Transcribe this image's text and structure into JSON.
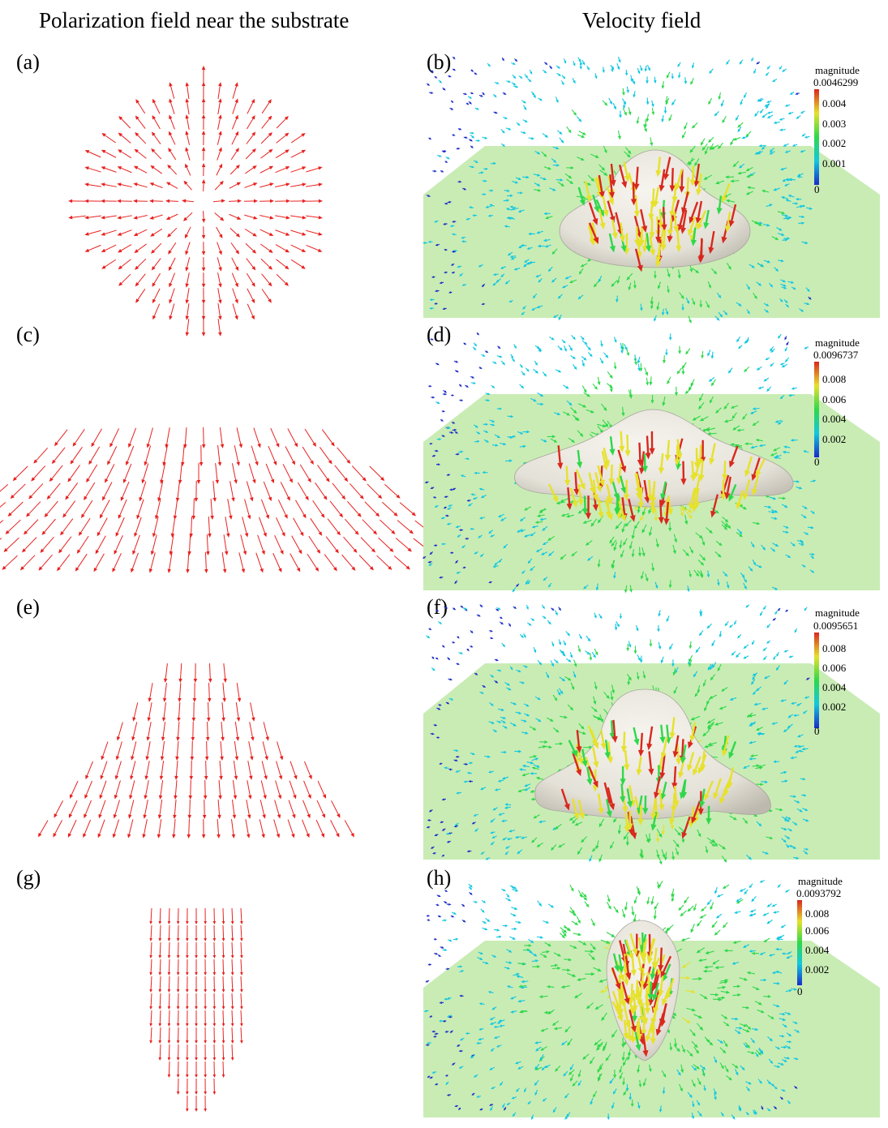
{
  "columns": {
    "left_title": "Polarization field near the substrate",
    "right_title": "Velocity field"
  },
  "panels": [
    {
      "label": "(a)"
    },
    {
      "label": "(b)"
    },
    {
      "label": "(c)"
    },
    {
      "label": "(d)"
    },
    {
      "label": "(e)"
    },
    {
      "label": "(f)"
    },
    {
      "label": "(g)"
    },
    {
      "label": "(h)"
    }
  ],
  "colorbars": [
    {
      "title": "magnitude",
      "max": "0.0046299",
      "ticks": [
        "0.004",
        "0.003",
        "0.002",
        "0.001",
        "0"
      ]
    },
    {
      "title": "magnitude",
      "max": "0.0096737",
      "ticks": [
        "0.008",
        "0.006",
        "0.004",
        "0.002",
        "0"
      ]
    },
    {
      "title": "magnitude",
      "max": "0.0095651",
      "ticks": [
        "0.008",
        "0.006",
        "0.004",
        "0.002",
        "0"
      ]
    },
    {
      "title": "magnitude",
      "max": "0.0093792",
      "ticks": [
        "0.008",
        "0.006",
        "0.004",
        "0.002",
        "0"
      ]
    }
  ],
  "colors": {
    "polarization_arrow": "#e8211f",
    "substrate": "#c9ecb5",
    "droplet": "#ebe8e0",
    "colormap": [
      "#1a2bc8",
      "#12c7e0",
      "#2fd84a",
      "#e6e12c",
      "#d8281e"
    ]
  }
}
